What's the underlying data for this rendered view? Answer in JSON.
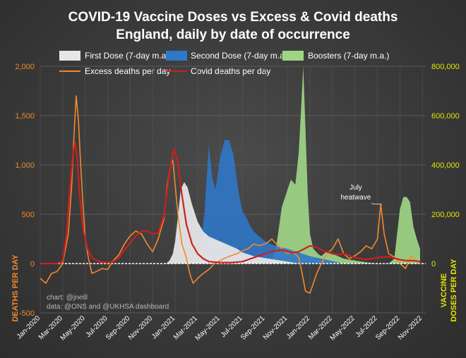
{
  "chart_data": {
    "type": "line",
    "title_lines": [
      "COVID-19 Vaccine Doses vs Excess & Covid deaths",
      "England, daily by date of occurrence"
    ],
    "ylabel_left": "DEATHS PER DAY",
    "ylabel_right_lines": [
      "VACCINE",
      "DOSES PER DAY"
    ],
    "ylim_left": [
      -500,
      2000
    ],
    "ylim_right": [
      0,
      800000
    ],
    "left_ticks": [
      -500,
      0,
      500,
      1000,
      1500,
      2000
    ],
    "left_tick_labels": [
      "-500",
      "0",
      "500",
      "1,000",
      "1,500",
      "2,000"
    ],
    "right_ticks": [
      0,
      200000,
      400000,
      600000,
      800000
    ],
    "right_tick_labels": [
      "0",
      "200,000",
      "400,000",
      "600,000",
      "800,000"
    ],
    "xlim": [
      0,
      34.3
    ],
    "x_ticks": [
      0,
      2,
      4,
      6,
      8,
      10,
      12,
      14,
      16,
      18,
      20,
      22,
      24,
      26,
      28,
      30,
      32,
      34
    ],
    "x_tick_labels": [
      "Jan-2020",
      "Mar-2020",
      "May-2020",
      "Jul-2020",
      "Sep-2020",
      "Nov-2020",
      "Jan-2021",
      "Mar-2021",
      "May-2021",
      "Jul-2021",
      "Sep-2021",
      "Nov-2021",
      "Jan-2022",
      "Mar-2022",
      "May-2022",
      "Jul-2022",
      "Sep-2022",
      "Nov-2022"
    ],
    "grid": true,
    "legend": [
      "First Dose (7-day m.a.)",
      "Second Dose (7-day m.a.)",
      "Boosters (7-day m.a.)",
      "Excess deaths per day",
      "Covid deaths per day"
    ],
    "legend_position": "top",
    "colors": {
      "first_dose": "#e6e6e6",
      "second_dose": "#2f77c8",
      "boosters": "#9ed585",
      "excess": "#f08a2c",
      "covid": "#cc1f1f",
      "left_axis": "#f08a2c",
      "right_axis": "#e4e400"
    },
    "series": [
      {
        "name": "First Dose (7-day m.a.)",
        "axis": "right",
        "x": [
          11.2,
          11.5,
          11.8,
          12.0,
          12.2,
          12.5,
          12.8,
          13.1,
          13.5,
          14.0,
          14.5,
          15.0,
          15.5,
          16.0,
          16.5,
          17.0,
          17.5,
          18.0,
          19.0,
          20.0,
          21.0,
          22.0,
          23.0
        ],
        "y": [
          0,
          12000,
          40000,
          90000,
          170000,
          300000,
          330000,
          310000,
          240000,
          170000,
          130000,
          110000,
          100000,
          90000,
          80000,
          70000,
          60000,
          45000,
          30000,
          22000,
          15000,
          8000,
          0
        ]
      },
      {
        "name": "Second Dose (7-day m.a.)",
        "axis": "right",
        "x": [
          12.8,
          13.5,
          14.2,
          14.6,
          15.0,
          15.3,
          15.6,
          16.0,
          16.4,
          16.8,
          17.2,
          17.6,
          18.0,
          18.3,
          18.6,
          19.0,
          19.5,
          20.0,
          20.5,
          21.0,
          22.0,
          23.0,
          24.0,
          25.0,
          26.0,
          27.0
        ],
        "y": [
          0,
          15000,
          60000,
          200000,
          480000,
          350000,
          300000,
          430000,
          500000,
          500000,
          440000,
          300000,
          210000,
          190000,
          160000,
          130000,
          110000,
          90000,
          80000,
          70000,
          60000,
          45000,
          30000,
          20000,
          10000,
          0
        ]
      },
      {
        "name": "Boosters (7-day m.a.)",
        "axis": "right",
        "x": [
          20.5,
          21.0,
          21.5,
          22.0,
          22.3,
          22.7,
          23.0,
          23.2,
          23.4,
          23.6,
          23.8,
          24.0,
          24.3,
          24.7,
          25.0,
          25.5,
          26.0,
          27.0,
          29.0,
          30.0,
          31.0,
          31.5,
          32.0,
          32.3,
          32.6,
          32.9,
          33.2,
          33.5,
          33.8
        ],
        "y": [
          0,
          70000,
          230000,
          300000,
          340000,
          320000,
          450000,
          620000,
          800000,
          540000,
          280000,
          120000,
          60000,
          40000,
          30000,
          50000,
          40000,
          20000,
          5000,
          0,
          0,
          20000,
          220000,
          270000,
          270000,
          250000,
          150000,
          100000,
          60000
        ]
      },
      {
        "name": "Excess deaths per day",
        "axis": "left",
        "x": [
          0,
          0.5,
          1.0,
          1.5,
          2.0,
          2.5,
          2.8,
          3.0,
          3.2,
          3.4,
          3.6,
          3.8,
          4.0,
          4.3,
          4.6,
          5.0,
          5.5,
          6.0,
          6.5,
          7.0,
          7.5,
          8.0,
          8.5,
          9.0,
          9.5,
          10.0,
          10.5,
          11.0,
          11.3,
          11.6,
          11.8,
          12.0,
          12.3,
          12.6,
          13.0,
          13.3,
          13.6,
          14.0,
          14.5,
          15.0,
          15.5,
          16.0,
          16.5,
          17.0,
          17.5,
          18.0,
          18.5,
          19.0,
          19.5,
          20.0,
          20.3,
          20.6,
          21.0,
          21.5,
          22.0,
          22.5,
          23.0,
          23.3,
          23.6,
          24.0,
          24.3,
          24.6,
          25.0,
          25.5,
          26.0,
          26.5,
          27.0,
          27.5,
          28.0,
          28.5,
          29.0,
          29.5,
          30.0,
          30.3,
          30.6,
          31.0,
          31.3,
          31.6,
          32.0,
          32.5,
          33.0,
          33.3,
          33.6,
          33.8
        ],
        "y": [
          -150,
          -200,
          -100,
          -80,
          0,
          300,
          800,
          1300,
          1700,
          1450,
          1000,
          600,
          250,
          50,
          -100,
          -80,
          -50,
          -60,
          30,
          90,
          200,
          280,
          330,
          300,
          200,
          120,
          250,
          450,
          800,
          1000,
          1050,
          800,
          450,
          200,
          60,
          -100,
          -200,
          -150,
          -100,
          -60,
          0,
          30,
          60,
          80,
          100,
          130,
          150,
          200,
          180,
          200,
          220,
          250,
          200,
          150,
          100,
          120,
          60,
          -100,
          -280,
          -300,
          -200,
          -100,
          0,
          100,
          150,
          250,
          100,
          50,
          80,
          120,
          180,
          150,
          250,
          600,
          300,
          100,
          80,
          60,
          0,
          -50,
          80,
          40,
          20,
          0
        ]
      },
      {
        "name": "Covid deaths per day",
        "axis": "left",
        "x": [
          0,
          1.5,
          2.0,
          2.3,
          2.6,
          2.9,
          3.1,
          3.3,
          3.5,
          3.8,
          4.2,
          4.6,
          5.0,
          5.5,
          6.0,
          6.5,
          7.0,
          7.5,
          8.0,
          8.5,
          9.0,
          9.5,
          10.0,
          10.5,
          11.0,
          11.3,
          11.6,
          11.9,
          12.2,
          12.6,
          13.0,
          13.5,
          14.0,
          14.5,
          15.0,
          16.0,
          17.0,
          18.0,
          19.0,
          20.0,
          20.5,
          21.0,
          21.5,
          22.0,
          22.5,
          23.0,
          23.5,
          24.0,
          24.5,
          25.0,
          25.5,
          26.0,
          26.5,
          27.0,
          28.0,
          29.0,
          30.0,
          31.0,
          32.0,
          32.5,
          33.0,
          33.5,
          33.8
        ],
        "y": [
          0,
          0,
          30,
          250,
          700,
          1100,
          1230,
          1050,
          700,
          350,
          150,
          60,
          30,
          15,
          10,
          20,
          60,
          140,
          210,
          280,
          330,
          330,
          300,
          310,
          480,
          750,
          1000,
          1160,
          1050,
          700,
          400,
          200,
          100,
          50,
          20,
          10,
          10,
          20,
          60,
          100,
          120,
          130,
          140,
          120,
          110,
          120,
          150,
          180,
          170,
          140,
          120,
          100,
          90,
          100,
          60,
          40,
          60,
          70,
          40,
          30,
          30,
          25,
          20
        ]
      }
    ],
    "annotations": [
      {
        "text_lines": [
          "July",
          "heatwave"
        ],
        "x": 30.4,
        "y": 600
      }
    ],
    "credits": [
      "chart: @jneill",
      "data: @ONS and @UKHSA dashboard"
    ]
  }
}
